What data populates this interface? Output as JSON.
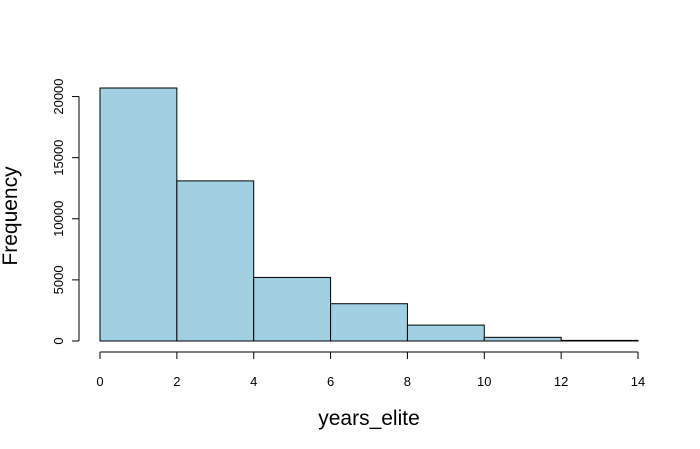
{
  "chart_data": {
    "type": "bar",
    "title": "",
    "xlabel": "years_elite",
    "ylabel": "Frequency",
    "bin_edges": [
      0,
      2,
      4,
      6,
      8,
      10,
      12,
      14
    ],
    "values": [
      20700,
      13100,
      5200,
      3050,
      1300,
      300,
      50
    ],
    "xlim": [
      0,
      14
    ],
    "ylim": [
      0,
      20700
    ],
    "x_ticks": [
      0,
      2,
      4,
      6,
      8,
      10,
      12,
      14
    ],
    "y_ticks": [
      0,
      5000,
      10000,
      15000,
      20000
    ],
    "x_tick_labels": [
      "0",
      "2",
      "4",
      "6",
      "8",
      "10",
      "12",
      "14"
    ],
    "y_tick_labels": [
      "0",
      "5000",
      "10000",
      "15000",
      "20000"
    ],
    "grid": false,
    "legend": "none",
    "colors": {
      "bar_fill": "#a1d0e2",
      "bar_stroke": "#000000"
    }
  }
}
